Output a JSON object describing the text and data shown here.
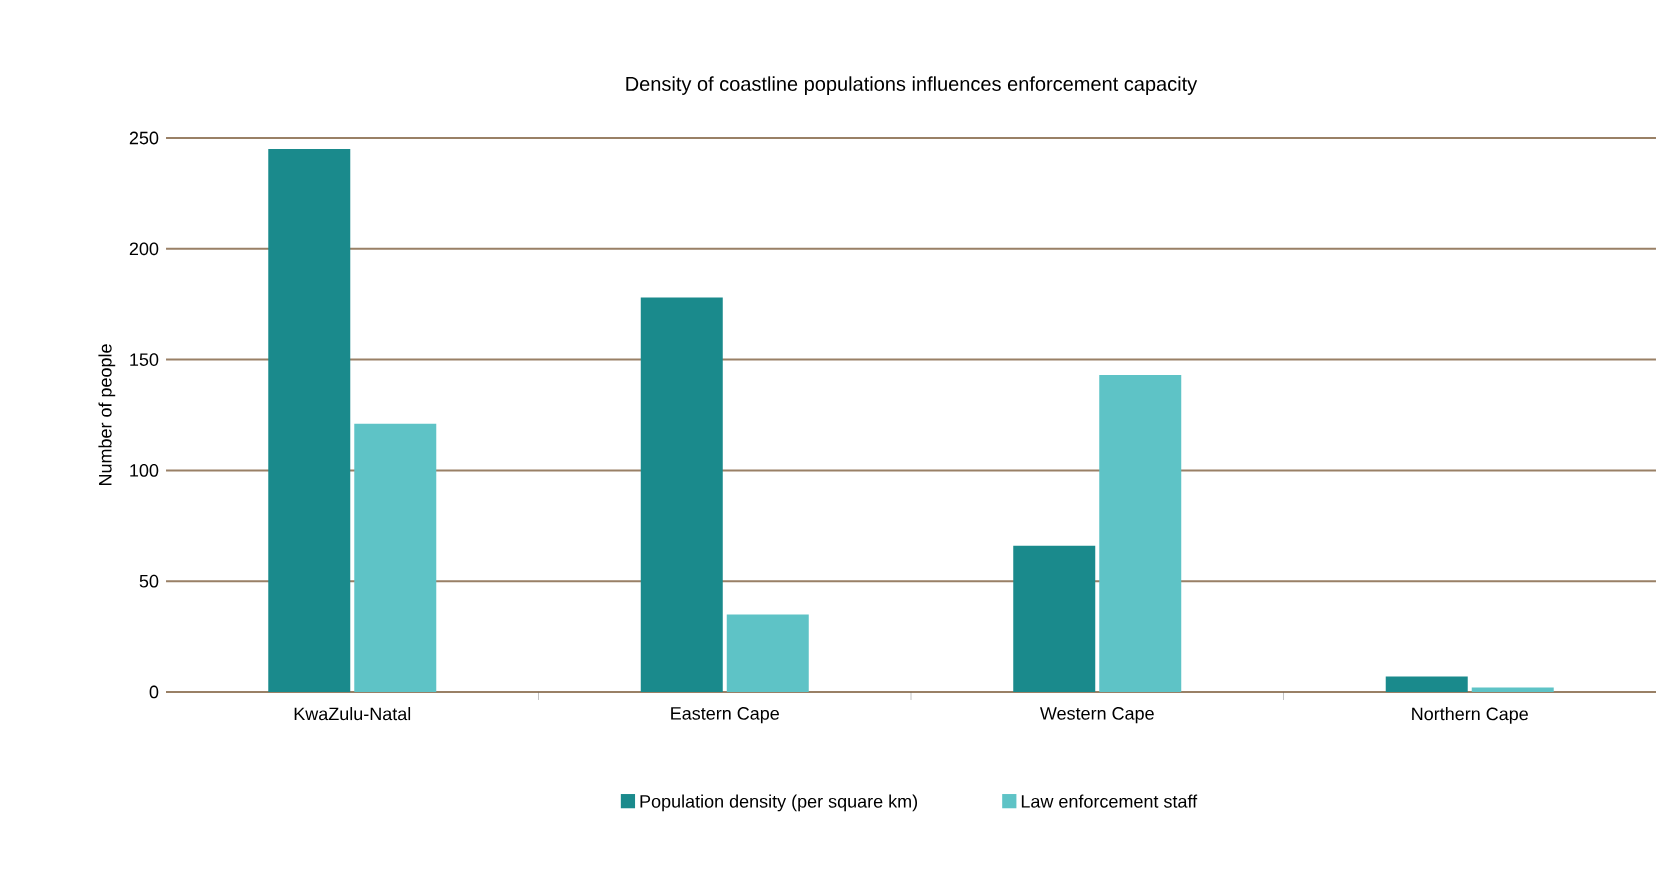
{
  "chart_data": {
    "type": "bar",
    "title": "Density of coastline populations influences enforcement capacity",
    "ylabel": "Number of people",
    "categories": [
      "KwaZulu-Natal",
      "Eastern Cape",
      "Western Cape",
      "Northern Cape"
    ],
    "series": [
      {
        "name": "Population density (per square km)",
        "color": "#1a8a8c",
        "values": [
          245,
          178,
          66,
          7
        ]
      },
      {
        "name": "Law enforcement staff",
        "color": "#5ec3c6",
        "values": [
          121,
          35,
          143,
          2
        ]
      }
    ],
    "ylim": [
      0,
      250
    ],
    "yticks": [
      0,
      50,
      100,
      150,
      200,
      250
    ],
    "grid": "y",
    "legend": "bottom"
  }
}
